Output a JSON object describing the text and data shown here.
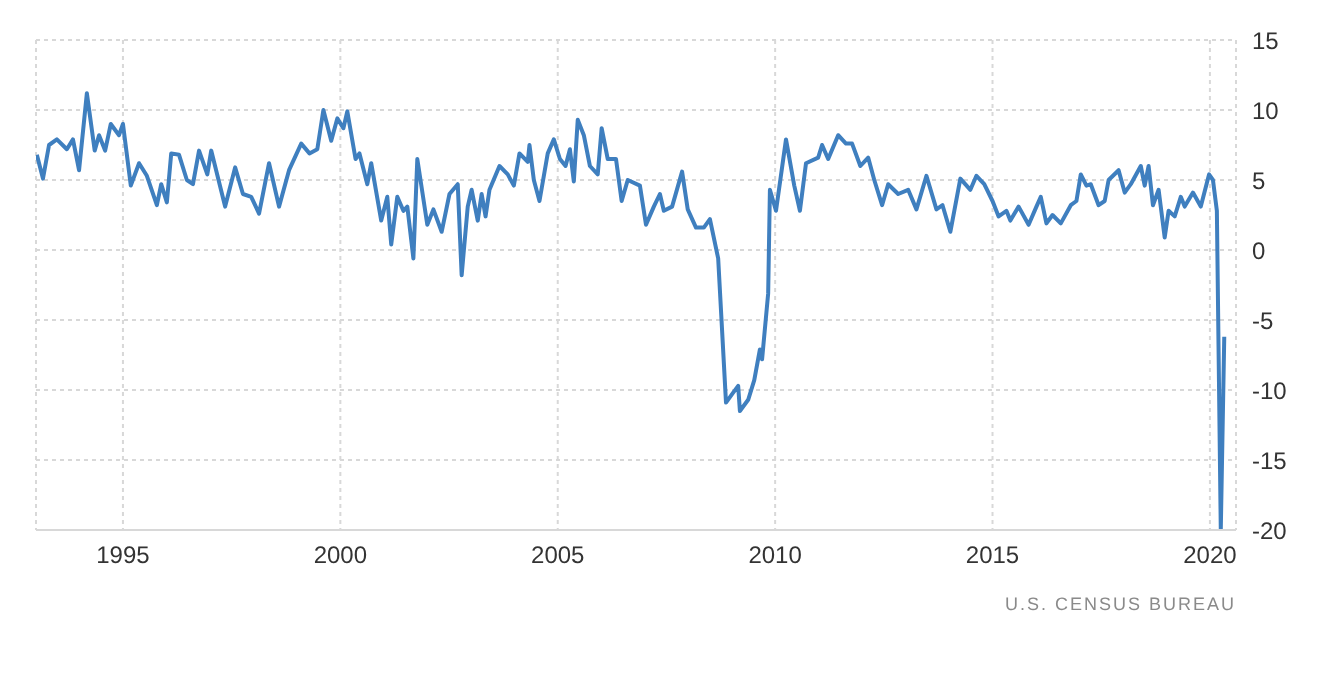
{
  "chart_data": {
    "type": "line",
    "x": [
      1993.02,
      1993.16,
      1993.3,
      1993.48,
      1993.71,
      1993.85,
      1993.99,
      1994.17,
      1994.35,
      1994.45,
      1994.59,
      1994.72,
      1994.91,
      1995.0,
      1995.18,
      1995.37,
      1995.55,
      1995.78,
      1995.88,
      1996.01,
      1996.11,
      1996.29,
      1996.47,
      1996.61,
      1996.75,
      1996.94,
      1997.03,
      1997.35,
      1997.58,
      1997.76,
      1997.95,
      1998.13,
      1998.36,
      1998.59,
      1998.82,
      1999.1,
      1999.29,
      1999.47,
      1999.61,
      1999.79,
      1999.93,
      2000.07,
      2000.16,
      2000.35,
      2000.44,
      2000.62,
      2000.71,
      2000.94,
      2001.08,
      2001.17,
      2001.31,
      2001.45,
      2001.54,
      2001.68,
      2001.77,
      2002.0,
      2002.14,
      2002.33,
      2002.51,
      2002.7,
      2002.79,
      2002.93,
      2003.02,
      2003.16,
      2003.25,
      2003.34,
      2003.43,
      2003.66,
      2003.85,
      2003.99,
      2004.12,
      2004.31,
      2004.35,
      2004.45,
      2004.58,
      2004.77,
      2004.91,
      2005.05,
      2005.18,
      2005.28,
      2005.37,
      2005.46,
      2005.6,
      2005.74,
      2005.92,
      2006.01,
      2006.15,
      2006.34,
      2006.47,
      2006.61,
      2006.89,
      2007.03,
      2007.21,
      2007.35,
      2007.44,
      2007.63,
      2007.86,
      2007.99,
      2008.18,
      2008.36,
      2008.5,
      2008.69,
      2008.87,
      2009.01,
      2009.15,
      2009.19,
      2009.38,
      2009.52,
      2009.65,
      2009.7,
      2009.84,
      2009.88,
      2010.02,
      2010.25,
      2010.44,
      2010.57,
      2010.71,
      2010.99,
      2011.08,
      2011.22,
      2011.45,
      2011.63,
      2011.77,
      2011.96,
      2012.14,
      2012.28,
      2012.46,
      2012.6,
      2012.83,
      2013.06,
      2013.25,
      2013.48,
      2013.71,
      2013.85,
      2014.03,
      2014.26,
      2014.49,
      2014.63,
      2014.81,
      2015.0,
      2015.14,
      2015.32,
      2015.41,
      2015.6,
      2015.83,
      2016.01,
      2016.11,
      2016.24,
      2016.38,
      2016.57,
      2016.8,
      2016.93,
      2017.03,
      2017.16,
      2017.26,
      2017.44,
      2017.58,
      2017.67,
      2017.9,
      2018.04,
      2018.18,
      2018.41,
      2018.5,
      2018.59,
      2018.69,
      2018.82,
      2018.96,
      2019.05,
      2019.19,
      2019.33,
      2019.42,
      2019.61,
      2019.79,
      2019.98,
      2020.07,
      2020.16,
      2020.25,
      2020.33
    ],
    "values": [
      6.8,
      5.1,
      7.5,
      7.9,
      7.2,
      7.9,
      5.7,
      11.2,
      7.1,
      8.2,
      7.1,
      9.0,
      8.2,
      9.0,
      4.6,
      6.2,
      5.3,
      3.2,
      4.7,
      3.4,
      6.9,
      6.8,
      5.0,
      4.7,
      7.1,
      5.4,
      7.1,
      3.1,
      5.9,
      4.0,
      3.8,
      2.6,
      6.2,
      3.1,
      5.7,
      7.6,
      6.9,
      7.2,
      10.0,
      7.8,
      9.4,
      8.7,
      9.9,
      6.5,
      6.9,
      4.7,
      6.2,
      2.1,
      3.8,
      0.4,
      3.8,
      2.8,
      3.1,
      -0.6,
      6.5,
      1.8,
      2.9,
      1.3,
      4.0,
      4.7,
      -1.8,
      3.1,
      4.3,
      2.1,
      4.0,
      2.4,
      4.3,
      6.0,
      5.4,
      4.6,
      6.9,
      6.3,
      7.5,
      5.0,
      3.5,
      6.9,
      7.9,
      6.5,
      6.0,
      7.2,
      4.9,
      9.3,
      8.2,
      6.0,
      5.4,
      8.7,
      6.5,
      6.5,
      3.5,
      5.0,
      4.6,
      1.8,
      3.1,
      4.0,
      2.8,
      3.1,
      5.6,
      2.9,
      1.6,
      1.6,
      2.2,
      -0.6,
      -10.9,
      -10.3,
      -9.7,
      -11.5,
      -10.7,
      -9.3,
      -7.1,
      -7.8,
      -3.1,
      4.3,
      2.8,
      7.9,
      4.6,
      2.8,
      6.2,
      6.6,
      7.5,
      6.5,
      8.2,
      7.6,
      7.6,
      6.0,
      6.6,
      5.0,
      3.2,
      4.7,
      4.0,
      4.3,
      2.9,
      5.3,
      2.9,
      3.2,
      1.3,
      5.1,
      4.3,
      5.3,
      4.7,
      3.5,
      2.4,
      2.8,
      2.1,
      3.1,
      1.8,
      3.1,
      3.8,
      1.9,
      2.5,
      1.9,
      3.2,
      3.5,
      5.4,
      4.6,
      4.7,
      3.2,
      3.5,
      5.0,
      5.7,
      4.1,
      4.7,
      6.0,
      4.6,
      6.0,
      3.2,
      4.3,
      0.9,
      2.8,
      2.4,
      3.8,
      3.1,
      4.1,
      3.1,
      5.4,
      5.0,
      2.8,
      -20.0,
      -6.2
    ],
    "color": "#3f7fbf",
    "xlim": [
      1993,
      2020.6
    ],
    "xticks": [
      1995,
      2000,
      2005,
      2010,
      2015,
      2020
    ],
    "ylim": [
      -20,
      15
    ],
    "yticks": [
      -20,
      -15,
      -10,
      -5,
      0,
      5,
      10,
      15
    ],
    "grid": true,
    "annotations": [
      "U.S. CENSUS BUREAU"
    ]
  }
}
